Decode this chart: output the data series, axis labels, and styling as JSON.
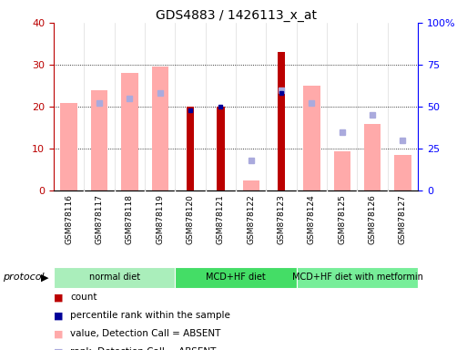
{
  "title": "GDS4883 / 1426113_x_at",
  "samples": [
    "GSM878116",
    "GSM878117",
    "GSM878118",
    "GSM878119",
    "GSM878120",
    "GSM878121",
    "GSM878122",
    "GSM878123",
    "GSM878124",
    "GSM878125",
    "GSM878126",
    "GSM878127"
  ],
  "count_values": [
    0,
    0,
    0,
    0,
    20,
    20,
    0,
    33,
    0,
    0,
    0,
    0
  ],
  "percentile_values": [
    0,
    0,
    0,
    0,
    48,
    50,
    0,
    58,
    0,
    0,
    0,
    0
  ],
  "pink_bar_values": [
    21,
    24,
    28,
    29.5,
    0,
    0,
    2.5,
    0,
    25,
    9.5,
    16,
    8.5
  ],
  "blue_sq_values": [
    0,
    52,
    55,
    58,
    0,
    0,
    18,
    60,
    52,
    35,
    45,
    30
  ],
  "count_color": "#bb0000",
  "percentile_color": "#000099",
  "pink_color": "#ffaaaa",
  "blue_sq_color": "#aaaadd",
  "ylim_left": [
    0,
    40
  ],
  "ylim_right": [
    0,
    100
  ],
  "yticks_left": [
    0,
    10,
    20,
    30,
    40
  ],
  "yticks_right": [
    0,
    25,
    50,
    75,
    100
  ],
  "ytick_labels_right": [
    "0",
    "25",
    "50",
    "75",
    "100%"
  ],
  "groups": [
    {
      "label": "normal diet",
      "start": 0,
      "end": 3,
      "color": "#aaeebb"
    },
    {
      "label": "MCD+HF diet",
      "start": 4,
      "end": 7,
      "color": "#44dd66"
    },
    {
      "label": "MCD+HF diet with metformin",
      "start": 8,
      "end": 11,
      "color": "#77ee99"
    }
  ],
  "protocol_label": "protocol",
  "legend_items": [
    {
      "color": "#bb0000",
      "label": "count"
    },
    {
      "color": "#000099",
      "label": "percentile rank within the sample"
    },
    {
      "color": "#ffaaaa",
      "label": "value, Detection Call = ABSENT"
    },
    {
      "color": "#aaaadd",
      "label": "rank, Detection Call = ABSENT"
    }
  ],
  "bg_color": "#ffffff",
  "sample_bg": "#cccccc",
  "pink_bar_width": 0.55,
  "red_bar_width": 0.25
}
